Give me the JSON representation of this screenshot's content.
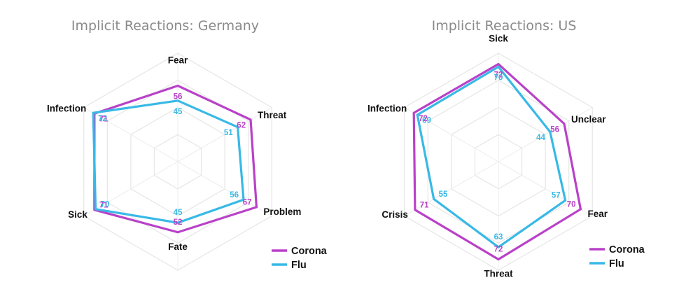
{
  "colors": {
    "corona": "#b941c8",
    "flu": "#38b9e6"
  },
  "chart_data": [
    {
      "type": "radar",
      "title": "Implicit Reactions: Germany",
      "axes": [
        "Fear",
        "Threat",
        "Problem",
        "Fate",
        "Sick",
        "Infection"
      ],
      "range": [
        0,
        80
      ],
      "series": [
        {
          "name": "Corona",
          "values": [
            56,
            62,
            67,
            52,
            71,
            71
          ]
        },
        {
          "name": "Flu",
          "values": [
            45,
            51,
            56,
            45,
            70,
            72
          ]
        }
      ],
      "legend": "bottom-right"
    },
    {
      "type": "radar",
      "title": "Implicit Reactions: US",
      "axes": [
        "Sick",
        "Unclear",
        "Fear",
        "Threat",
        "Crisis",
        "Infection"
      ],
      "range": [
        0,
        80
      ],
      "series": [
        {
          "name": "Corona",
          "values": [
            72,
            56,
            70,
            72,
            71,
            72
          ]
        },
        {
          "name": "Flu",
          "values": [
            70,
            44,
            57,
            63,
            55,
            69
          ]
        }
      ],
      "legend": "bottom-right"
    }
  ]
}
